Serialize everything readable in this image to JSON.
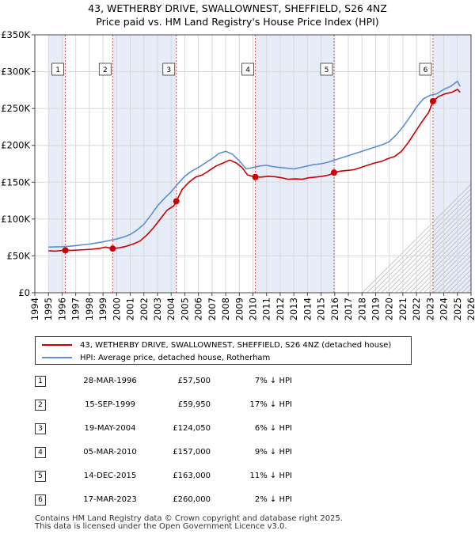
{
  "chart_data": {
    "type": "line",
    "title": "43, WETHERBY DRIVE, SWALLOWNEST, SHEFFIELD, S26 4NZ",
    "subtitle": "Price paid vs. HM Land Registry's House Price Index (HPI)",
    "xlim": [
      1994,
      2026
    ],
    "ylim": [
      0,
      350000
    ],
    "x_ticks": [
      "1994",
      "1995",
      "1996",
      "1997",
      "1998",
      "1999",
      "2000",
      "2001",
      "2002",
      "2003",
      "2004",
      "2005",
      "2006",
      "2007",
      "2008",
      "2009",
      "2010",
      "2011",
      "2012",
      "2013",
      "2014",
      "2015",
      "2016",
      "2017",
      "2018",
      "2019",
      "2020",
      "2021",
      "2022",
      "2023",
      "2024",
      "2025",
      "2026"
    ],
    "y_ticks": [
      {
        "value": 0,
        "label": "£0"
      },
      {
        "value": 50000,
        "label": "£50K"
      },
      {
        "value": 100000,
        "label": "£100K"
      },
      {
        "value": 150000,
        "label": "£150K"
      },
      {
        "value": 200000,
        "label": "£200K"
      },
      {
        "value": 250000,
        "label": "£250K"
      },
      {
        "value": 300000,
        "label": "£300K"
      },
      {
        "value": 350000,
        "label": "£350K"
      }
    ],
    "grid": true,
    "series": [
      {
        "name": "43, WETHERBY DRIVE, SWALLOWNEST, SHEFFIELD, S26 4NZ (detached house)",
        "color": "#cc0000",
        "x": [
          1995.0,
          1995.5,
          1996.0,
          1996.24,
          1996.7,
          1997.2,
          1997.7,
          1998.2,
          1998.7,
          1999.2,
          1999.71,
          2000.2,
          2000.7,
          2001.2,
          2001.7,
          2002.2,
          2002.7,
          2003.2,
          2003.7,
          2004.2,
          2004.38,
          2004.8,
          2005.3,
          2005.8,
          2006.3,
          2006.8,
          2007.3,
          2007.8,
          2008.3,
          2008.8,
          2009.2,
          2009.6,
          2010.18,
          2010.6,
          2011.1,
          2011.6,
          2012.1,
          2012.6,
          2013.1,
          2013.6,
          2014.1,
          2014.6,
          2015.1,
          2015.6,
          2015.95,
          2016.4,
          2016.9,
          2017.4,
          2017.9,
          2018.4,
          2018.9,
          2019.4,
          2019.9,
          2020.4,
          2020.9,
          2021.4,
          2021.9,
          2022.4,
          2022.9,
          2023.21,
          2023.6,
          2024.1,
          2024.6,
          2025.0,
          2025.2
        ],
        "values": [
          57000,
          56500,
          57300,
          57500,
          57500,
          58000,
          58500,
          59000,
          60000,
          62000,
          59950,
          61000,
          63000,
          66000,
          70000,
          78000,
          88000,
          100000,
          112000,
          118000,
          124050,
          140000,
          150000,
          157000,
          160000,
          166000,
          172000,
          176000,
          180000,
          176000,
          170000,
          160000,
          157000,
          157000,
          158000,
          157500,
          156000,
          154000,
          154500,
          154000,
          156000,
          157000,
          158000,
          160000,
          163000,
          165000,
          166000,
          167000,
          170000,
          173000,
          176000,
          178000,
          182000,
          185000,
          192000,
          204000,
          218000,
          232000,
          245000,
          260000,
          266000,
          270000,
          272000,
          276000,
          272000
        ]
      },
      {
        "name": "HPI: Average price, detached house, Rotherham",
        "color": "#5b8ed6",
        "x": [
          1995.0,
          1995.5,
          1996.0,
          1996.5,
          1997.0,
          1997.5,
          1998.0,
          1998.5,
          1999.0,
          1999.5,
          2000.0,
          2000.5,
          2001.0,
          2001.5,
          2002.0,
          2002.5,
          2003.0,
          2003.5,
          2004.0,
          2004.5,
          2005.0,
          2005.5,
          2006.0,
          2006.5,
          2007.0,
          2007.5,
          2008.0,
          2008.5,
          2009.0,
          2009.5,
          2010.0,
          2010.5,
          2011.0,
          2011.5,
          2012.0,
          2012.5,
          2013.0,
          2013.5,
          2014.0,
          2014.5,
          2015.0,
          2015.5,
          2016.0,
          2016.5,
          2017.0,
          2017.5,
          2018.0,
          2018.5,
          2019.0,
          2019.5,
          2020.0,
          2020.5,
          2021.0,
          2021.5,
          2022.0,
          2022.5,
          2023.0,
          2023.5,
          2024.0,
          2024.5,
          2025.0,
          2025.2
        ],
        "values": [
          62000,
          62200,
          62500,
          63000,
          64000,
          65000,
          66000,
          67500,
          69000,
          71000,
          73000,
          75500,
          79000,
          85000,
          93000,
          105000,
          118000,
          128000,
          137000,
          148000,
          158000,
          165000,
          170000,
          176000,
          182000,
          189000,
          192000,
          188000,
          179000,
          168000,
          170000,
          172000,
          173000,
          171000,
          170000,
          169000,
          168000,
          170000,
          172000,
          174000,
          175000,
          177000,
          180000,
          183000,
          186000,
          189000,
          192000,
          195000,
          198000,
          201000,
          205000,
          214000,
          225000,
          238000,
          252000,
          263000,
          268000,
          270000,
          276000,
          280000,
          287000,
          280000
        ]
      }
    ],
    "sales": [
      {
        "num": "1",
        "x": 1996.24,
        "value": 57500
      },
      {
        "num": "2",
        "x": 1999.71,
        "value": 59950
      },
      {
        "num": "3",
        "x": 2004.38,
        "value": 124050
      },
      {
        "num": "4",
        "x": 2010.18,
        "value": 157000
      },
      {
        "num": "5",
        "x": 2015.95,
        "value": 163000
      },
      {
        "num": "6",
        "x": 2023.21,
        "value": 260000
      }
    ],
    "shaded_periods": [
      {
        "from": 1995.0,
        "to": 1996.24
      },
      {
        "from": 1999.71,
        "to": 2004.38
      },
      {
        "from": 2010.18,
        "to": 2015.95
      },
      {
        "from": 2023.21,
        "to": 2026.0
      }
    ]
  },
  "legend": {
    "property_label": "43, WETHERBY DRIVE, SWALLOWNEST, SHEFFIELD, S26 4NZ (detached house)",
    "hpi_label": "HPI: Average price, detached house, Rotherham"
  },
  "sales_table": [
    {
      "num": "1",
      "date": "28-MAR-1996",
      "price": "£57,500",
      "hpi": "7% ↓ HPI"
    },
    {
      "num": "2",
      "date": "15-SEP-1999",
      "price": "£59,950",
      "hpi": "17% ↓ HPI"
    },
    {
      "num": "3",
      "date": "19-MAY-2004",
      "price": "£124,050",
      "hpi": "6% ↓ HPI"
    },
    {
      "num": "4",
      "date": "05-MAR-2010",
      "price": "£157,000",
      "hpi": "9% ↓ HPI"
    },
    {
      "num": "5",
      "date": "14-DEC-2015",
      "price": "£163,000",
      "hpi": "11% ↓ HPI"
    },
    {
      "num": "6",
      "date": "17-MAR-2023",
      "price": "£260,000",
      "hpi": "2% ↓ HPI"
    }
  ],
  "footer": {
    "line1": "Contains HM Land Registry data © Crown copyright and database right 2025.",
    "line2": "This data is licensed under the Open Government Licence v3.0."
  }
}
